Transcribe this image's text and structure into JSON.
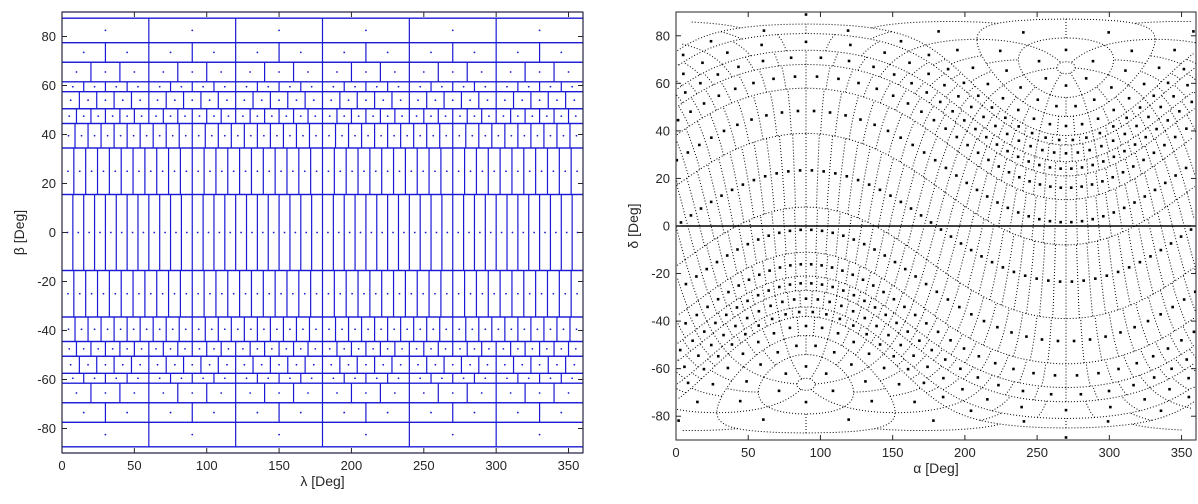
{
  "colors": {
    "left_grid": "#1a1ad6",
    "right_grid": "#000000",
    "axes": "#262626"
  },
  "chart_data": [
    {
      "type": "scatter",
      "title": "",
      "xlabel": "λ [Deg]",
      "ylabel": "β [Deg]",
      "xlim": [
        0,
        360
      ],
      "ylim": [
        -90,
        90
      ],
      "xticks": [
        "0",
        "50",
        "100",
        "150",
        "200",
        "250",
        "300",
        "350"
      ],
      "yticks": [
        "-80",
        "-60",
        "-40",
        "-20",
        "0",
        "20",
        "40",
        "60",
        "80"
      ],
      "grid_style": "solid",
      "bands": [
        {
          "b0": 87.5,
          "b1": 90,
          "n": 1
        },
        {
          "b0": 77.5,
          "b1": 87.5,
          "n": 6
        },
        {
          "b0": 69.5,
          "b1": 77.5,
          "n": 12
        },
        {
          "b0": 61.5,
          "b1": 69.5,
          "n": 18
        },
        {
          "b0": 57.5,
          "b1": 61.5,
          "n": 24
        },
        {
          "b0": 50.5,
          "b1": 57.5,
          "n": 30
        },
        {
          "b0": 44.5,
          "b1": 50.5,
          "n": 36
        },
        {
          "b0": 34.5,
          "b1": 44.5,
          "n": 40
        },
        {
          "b0": 15.5,
          "b1": 34.5,
          "n": 44
        },
        {
          "b0": -15.5,
          "b1": 15.5,
          "n": 48
        },
        {
          "b0": -34.5,
          "b1": -15.5,
          "n": 44
        },
        {
          "b0": -44.5,
          "b1": -34.5,
          "n": 40
        },
        {
          "b0": -50.5,
          "b1": -44.5,
          "n": 36
        },
        {
          "b0": -57.5,
          "b1": -50.5,
          "n": 30
        },
        {
          "b0": -61.5,
          "b1": -57.5,
          "n": 24
        },
        {
          "b0": -69.5,
          "b1": -61.5,
          "n": 18
        },
        {
          "b0": -77.5,
          "b1": -69.5,
          "n": 12
        },
        {
          "b0": -87.5,
          "b1": -77.5,
          "n": 6
        },
        {
          "b0": -90,
          "b1": -87.5,
          "n": 1
        }
      ]
    },
    {
      "type": "scatter",
      "title": "",
      "xlabel": "α [Deg]",
      "ylabel": "δ [Deg]",
      "xlim": [
        0,
        360
      ],
      "ylim": [
        -90,
        90
      ],
      "xticks": [
        "0",
        "50",
        "100",
        "150",
        "200",
        "250",
        "300",
        "350"
      ],
      "yticks": [
        "-80",
        "-60",
        "-40",
        "-20",
        "0",
        "20",
        "40",
        "60",
        "80"
      ],
      "grid_style": "dotted",
      "equator_line": 0,
      "transform": "ecliptic-to-equatorial",
      "obliquity_deg": 23.44
    }
  ]
}
